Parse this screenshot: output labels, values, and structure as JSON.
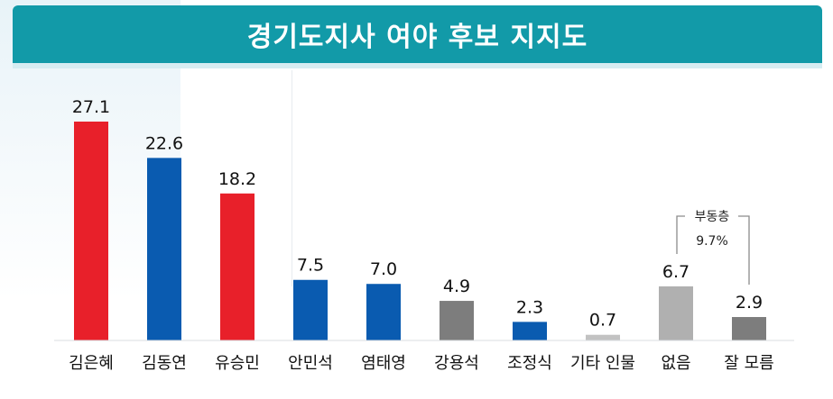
{
  "header": {
    "title": "경기도지사 여야 후보 지지도"
  },
  "annotation": {
    "label": "부동층",
    "value": "9.7%"
  },
  "chart_data": {
    "type": "bar",
    "title": "경기도지사 여야 후보 지지도",
    "categories": [
      "김은혜",
      "김동연",
      "유승민",
      "안민석",
      "염태영",
      "강용석",
      "조정식",
      "기타 인물",
      "없음",
      "잘 모름"
    ],
    "values": [
      27.1,
      22.6,
      18.2,
      7.5,
      7.0,
      4.9,
      2.3,
      0.7,
      6.7,
      2.9
    ],
    "value_labels": [
      "27.1",
      "22.6",
      "18.2",
      "7.5",
      "7.0",
      "4.9",
      "2.3",
      "0.7",
      "6.7",
      "2.9"
    ],
    "colors": [
      "#e8202a",
      "#0a5bb0",
      "#e8202a",
      "#0a5bb0",
      "#0a5bb0",
      "#7d7d7d",
      "#0a5bb0",
      "#c2c2c2",
      "#b0b0b0",
      "#7d7d7d"
    ],
    "ylim": [
      0,
      30
    ],
    "grid": false,
    "xlabel": "",
    "ylabel": ""
  }
}
